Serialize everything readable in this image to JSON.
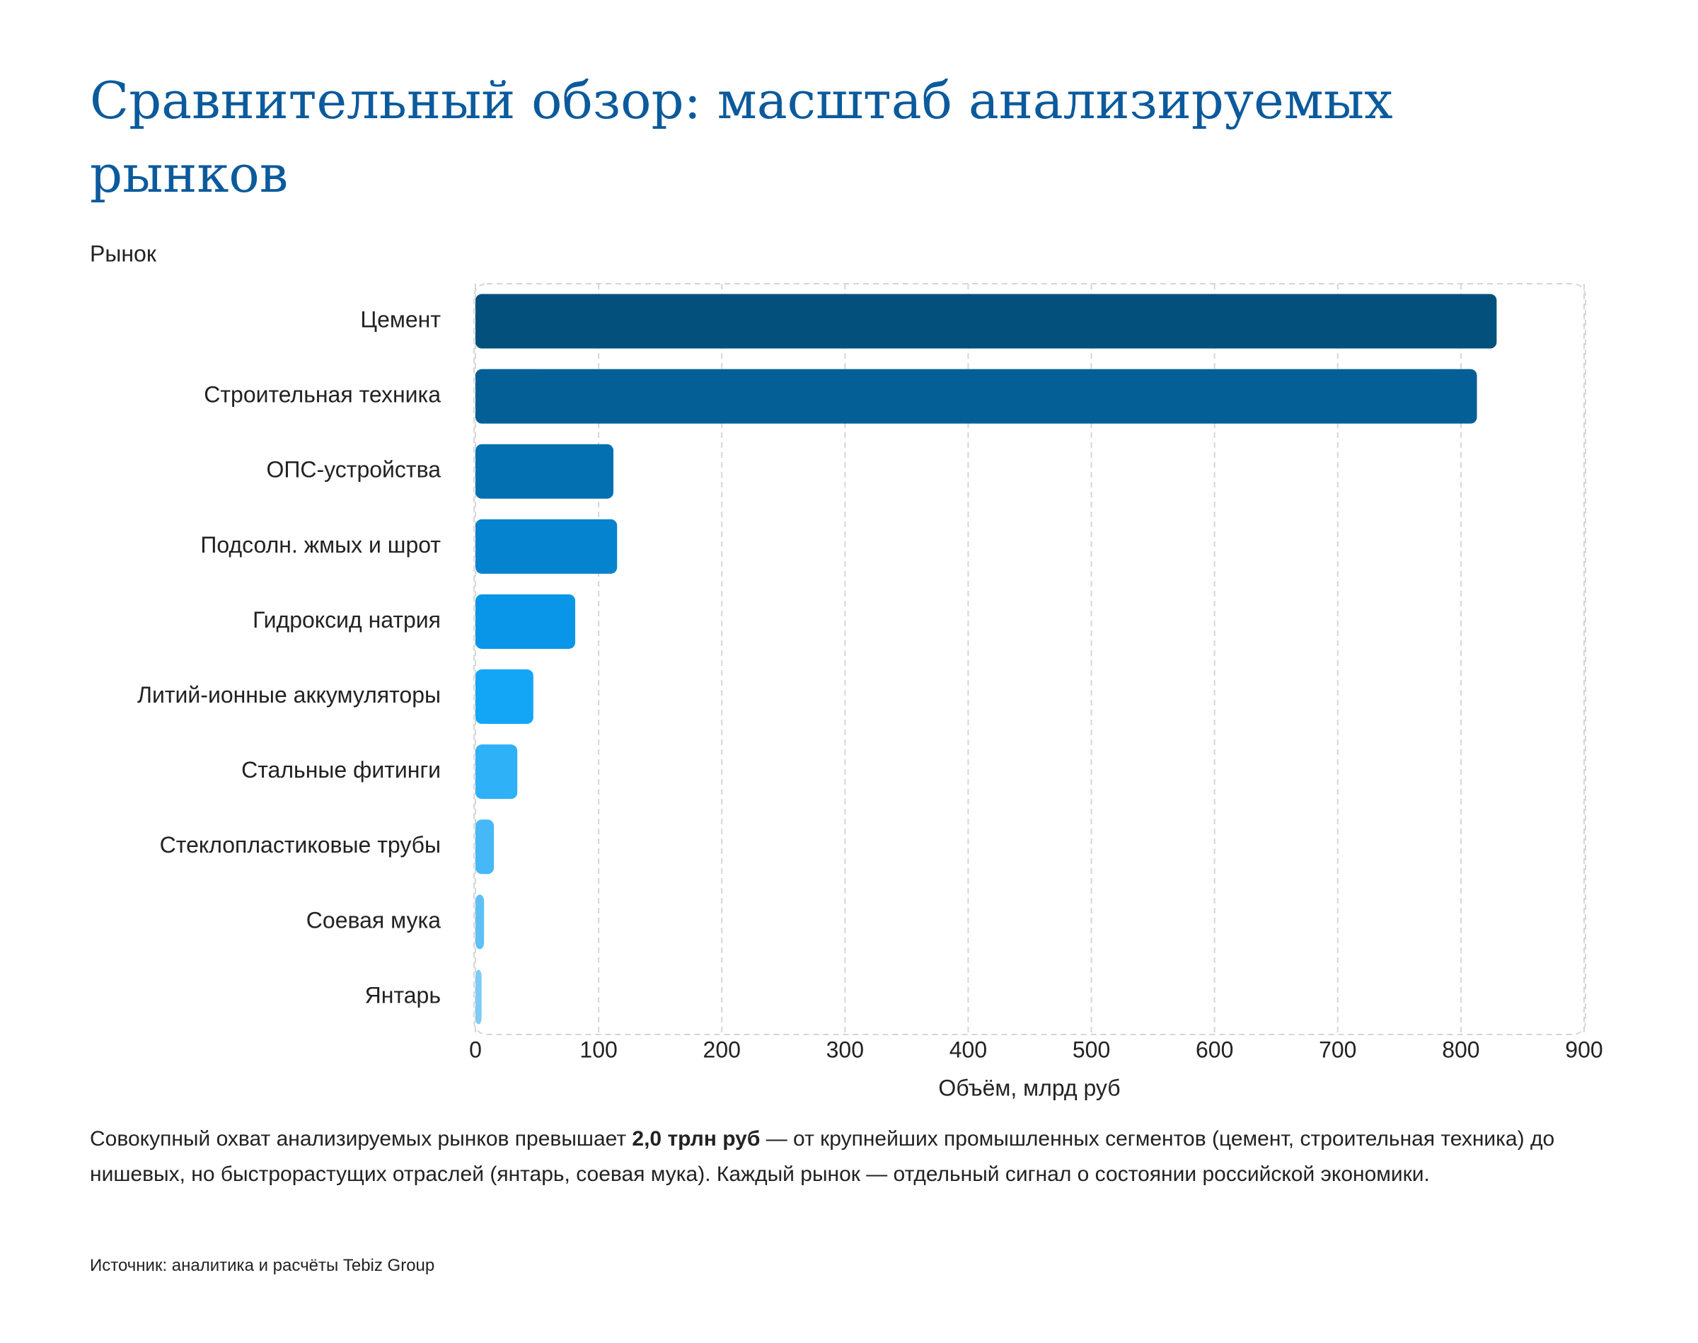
{
  "chart_data": {
    "type": "bar",
    "orientation": "horizontal",
    "title": "Сравнительный обзор: масштаб анализируемых рынков",
    "y_label": "Рынок",
    "x_label": "Объём, млрд руб",
    "categories": [
      "Цемент",
      "Строительная техника",
      "ОПС-устройства",
      "Подсолн. жмых и шрот",
      "Гидроксид натрия",
      "Литий-ионные аккумуляторы",
      "Стальные фитинги",
      "Стеклопластиковые трубы",
      "Соевая мука",
      "Янтарь"
    ],
    "values": [
      829,
      813,
      112,
      115,
      81,
      47,
      34,
      15,
      7,
      5
    ],
    "colors": [
      "#03507d",
      "#035f96",
      "#0370b2",
      "#0683cf",
      "#0996e8",
      "#14a6f6",
      "#2fb1f8",
      "#46b8f7",
      "#5fc0f6",
      "#7dcbf6"
    ],
    "xlim": [
      0,
      900
    ],
    "xticks": [
      0,
      100,
      200,
      300,
      400,
      500,
      600,
      700,
      800,
      900
    ],
    "grid": true
  },
  "description": [
    "Совокупный охват анализируемых рынков превышает ",
    "2,0 трлн руб",
    " — от крупнейших промышленных сегментов (цемент, строительная техника) до нишевых, но быстрорастущих отраслей (янтарь, соевая мука). Каждый рынок — отдельный сигнал о состоянии российской экономики."
  ],
  "source": "Источник: аналитика и расчёты Tebiz Group"
}
